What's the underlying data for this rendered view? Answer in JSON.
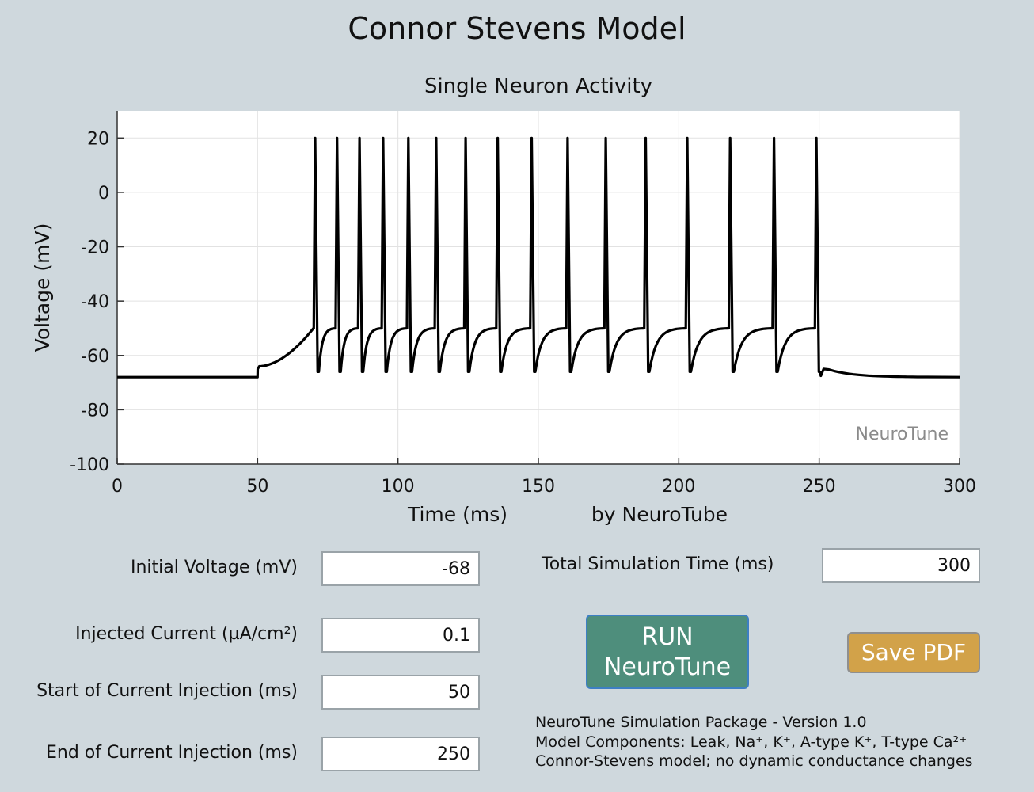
{
  "app": {
    "title": "Connor Stevens Model"
  },
  "plot": {
    "title": "Single Neuron Activity",
    "xlabel": "Time (ms)",
    "ylabel": "Voltage (mV)",
    "watermark": "NeuroTune",
    "credit": "by NeuroTube"
  },
  "chart_data": {
    "type": "line",
    "title": "Single Neuron Activity",
    "xlabel": "Time (ms)",
    "ylabel": "Voltage (mV)",
    "xlim": [
      0,
      300
    ],
    "ylim": [
      -100,
      30
    ],
    "xticks": [
      "0",
      "50",
      "100",
      "150",
      "200",
      "250",
      "300"
    ],
    "yticks": [
      "20",
      "0",
      "-20",
      "-40",
      "-60",
      "-80",
      "-100"
    ],
    "grid": true,
    "line_color": "#000000",
    "resting_voltage": -68,
    "stimulus_start": 50,
    "stimulus_end": 250,
    "spike_times": [
      70.5,
      78.3,
      86.3,
      94.7,
      103.7,
      113.6,
      124.1,
      135.5,
      147.6,
      160.4,
      174.0,
      188.2,
      203.0,
      218.3,
      233.9,
      249.0
    ],
    "spike_peak": 20,
    "after_hyperpolarization": -66
  },
  "controls": {
    "initial_voltage_label": "Initial Voltage (mV)",
    "initial_voltage_value": "-68",
    "injected_current_label": "Injected Current (µA/cm²)",
    "injected_current_value": "0.1",
    "start_label": "Start of Current Injection (ms)",
    "start_value": "50",
    "end_label": "End of Current Injection (ms)",
    "end_value": "250",
    "total_time_label": "Total Simulation Time (ms)",
    "total_time_value": "300"
  },
  "buttons": {
    "run_line1": "RUN",
    "run_line2": "NeuroTune",
    "save": "Save PDF",
    "run_color": "#4e8e7c",
    "save_color": "#d2a249"
  },
  "info": {
    "line1": "NeuroTune Simulation Package - Version 1.0",
    "line2": "Model Components: Leak, Na⁺, K⁺, A-type K⁺, T-type Ca²⁺",
    "line3": "Connor-Stevens model; no dynamic conductance changes"
  }
}
